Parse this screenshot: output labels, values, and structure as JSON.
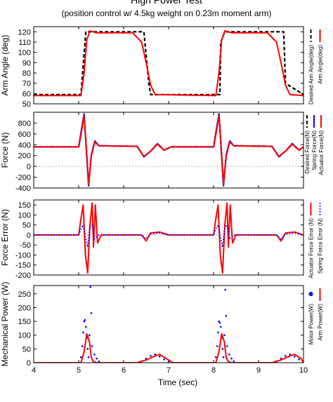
{
  "figure": {
    "title": "High Power Test",
    "subtitle": "(position control w/ 4.5kg weight on 0.23m moment arm)",
    "xlabel": "Time (sec)"
  },
  "chart_data": [
    {
      "type": "line",
      "ylabel": "Arm Angle (deg)",
      "xlim": [
        4,
        10
      ],
      "ylim": [
        50,
        125
      ],
      "yticks": [
        50,
        60,
        70,
        80,
        90,
        100,
        110,
        120
      ],
      "legend_position": "right",
      "series": [
        {
          "name": "Desired Arm Angle(deg)",
          "color": "#000000",
          "style": "dashed",
          "x": [
            4,
            5.05,
            5.14,
            5.16,
            5.25,
            6.45,
            6.56,
            6.6,
            8.05,
            8.14,
            8.16,
            8.25,
            9.45,
            9.56,
            9.6,
            10
          ],
          "y": [
            59,
            59,
            110,
            120,
            120,
            120,
            70,
            59,
            59,
            59,
            110,
            120,
            120,
            120,
            70,
            59
          ]
        },
        {
          "name": "Arm Angle(deg)",
          "color": "#ff0000",
          "style": "solid",
          "x": [
            4,
            5.05,
            5.12,
            5.18,
            5.25,
            5.4,
            6.2,
            6.4,
            6.5,
            6.6,
            6.7,
            8.05,
            8.12,
            8.18,
            8.25,
            8.4,
            9.2,
            9.4,
            9.5,
            9.6,
            9.7,
            10
          ],
          "y": [
            58,
            58,
            80,
            112,
            121,
            119,
            119,
            110,
            90,
            68,
            59,
            58,
            80,
            112,
            121,
            119,
            119,
            110,
            90,
            68,
            59,
            58
          ]
        }
      ]
    },
    {
      "type": "line",
      "ylabel": "Force (N)",
      "xlim": [
        4,
        10
      ],
      "ylim": [
        -400,
        1000
      ],
      "yticks": [
        -400,
        -200,
        0,
        200,
        400,
        600,
        800
      ],
      "legend_position": "right",
      "series": [
        {
          "name": "Desired Force(N)",
          "color": "#000000",
          "style": "dashed",
          "x": [
            4,
            5.0,
            5.05,
            5.12,
            5.18,
            5.22,
            5.28,
            5.36,
            5.45,
            6.3,
            6.45,
            6.6,
            6.75,
            6.9,
            7.05,
            8.0,
            8.05,
            8.12,
            8.18,
            8.22,
            8.28,
            8.36,
            8.45,
            9.3,
            9.45,
            9.6,
            9.75,
            9.9,
            10
          ],
          "y": [
            360,
            360,
            600,
            960,
            200,
            -350,
            200,
            460,
            380,
            370,
            180,
            280,
            420,
            300,
            360,
            360,
            600,
            960,
            200,
            -350,
            200,
            460,
            380,
            370,
            180,
            280,
            420,
            300,
            360
          ]
        },
        {
          "name": "Spring Force(N)",
          "color": "#0000ff",
          "style": "solid",
          "x": [
            4,
            5.0,
            5.05,
            5.12,
            5.18,
            5.22,
            5.28,
            5.36,
            5.45,
            6.3,
            6.45,
            6.6,
            6.75,
            6.9,
            7.05,
            8.0,
            8.05,
            8.12,
            8.18,
            8.22,
            8.28,
            8.36,
            8.45,
            9.3,
            9.45,
            9.6,
            9.75,
            9.9,
            10
          ],
          "y": [
            360,
            360,
            620,
            970,
            180,
            -360,
            210,
            470,
            380,
            370,
            175,
            280,
            420,
            300,
            360,
            360,
            620,
            970,
            180,
            -360,
            210,
            470,
            380,
            370,
            175,
            280,
            420,
            300,
            360
          ]
        },
        {
          "name": "Actuator Force(N)",
          "color": "#ff0000",
          "style": "solid",
          "x": [
            4,
            5.0,
            5.05,
            5.12,
            5.18,
            5.22,
            5.28,
            5.36,
            5.45,
            6.3,
            6.45,
            6.6,
            6.75,
            6.9,
            7.05,
            8.0,
            8.05,
            8.12,
            8.18,
            8.22,
            8.28,
            8.36,
            8.45,
            9.3,
            9.45,
            9.6,
            9.75,
            9.9,
            10
          ],
          "y": [
            360,
            360,
            580,
            940,
            220,
            -330,
            190,
            450,
            380,
            370,
            185,
            280,
            410,
            300,
            360,
            360,
            580,
            940,
            220,
            -330,
            190,
            450,
            380,
            370,
            185,
            280,
            410,
            300,
            360
          ]
        }
      ]
    },
    {
      "type": "line",
      "ylabel": "Force Error (N)",
      "xlim": [
        4,
        10
      ],
      "ylim": [
        -200,
        175
      ],
      "yticks": [
        -200,
        -150,
        -100,
        -50,
        0,
        50,
        100,
        150
      ],
      "legend_position": "right",
      "series": [
        {
          "name": "Actuator Force Error (N)",
          "color": "#ff0000",
          "style": "solid",
          "x": [
            4,
            5.0,
            5.05,
            5.1,
            5.15,
            5.2,
            5.25,
            5.3,
            5.33,
            5.37,
            5.42,
            5.5,
            6.4,
            6.5,
            6.6,
            6.8,
            7.0,
            8.0,
            8.05,
            8.1,
            8.15,
            8.2,
            8.25,
            8.3,
            8.33,
            8.37,
            8.42,
            8.5,
            9.4,
            9.5,
            9.6,
            9.8,
            10
          ],
          "y": [
            0,
            0,
            80,
            150,
            -100,
            -190,
            50,
            160,
            -60,
            150,
            -40,
            0,
            0,
            -30,
            10,
            15,
            0,
            0,
            80,
            150,
            -100,
            -190,
            50,
            160,
            -60,
            150,
            -40,
            0,
            0,
            -30,
            10,
            15,
            0
          ]
        },
        {
          "name": "Spring Force Error (N)",
          "color": "#0000ff",
          "style": "dotted",
          "x": [
            4,
            5.0,
            5.05,
            5.1,
            5.15,
            5.2,
            5.25,
            5.3,
            5.35,
            5.45,
            6.4,
            6.5,
            6.6,
            6.8,
            7.0,
            8.0,
            8.05,
            8.1,
            8.15,
            8.2,
            8.25,
            8.3,
            8.35,
            8.45,
            9.4,
            9.5,
            9.6,
            9.8,
            10
          ],
          "y": [
            0,
            0,
            30,
            50,
            -10,
            -60,
            40,
            50,
            -20,
            0,
            0,
            -20,
            5,
            10,
            0,
            0,
            30,
            50,
            -10,
            -60,
            40,
            50,
            -20,
            0,
            0,
            -20,
            5,
            10,
            0
          ]
        }
      ]
    },
    {
      "type": "scatter",
      "ylabel": "Mechanical Power (W)",
      "xlim": [
        4,
        10
      ],
      "ylim": [
        0,
        280
      ],
      "yticks": [
        0,
        50,
        100,
        150,
        200,
        250
      ],
      "xticks": [
        4,
        5,
        6,
        7,
        8,
        9,
        10
      ],
      "legend_position": "right",
      "series": [
        {
          "name": "Motor Power(W)",
          "color": "#0000ff",
          "style": "dots",
          "x": [
            5.05,
            5.08,
            5.1,
            5.12,
            5.14,
            5.16,
            5.18,
            5.2,
            5.22,
            5.24,
            5.26,
            5.28,
            5.3,
            5.35,
            5.4,
            5.45,
            6.4,
            6.5,
            6.6,
            6.7,
            6.8,
            6.9,
            7.0,
            8.05,
            8.08,
            8.1,
            8.12,
            8.14,
            8.16,
            8.18,
            8.2,
            8.22,
            8.24,
            8.26,
            8.28,
            8.3,
            8.35,
            8.4,
            8.45,
            9.4,
            9.5,
            9.6,
            9.7,
            9.8,
            9.9,
            10.0
          ],
          "y": [
            20,
            60,
            110,
            150,
            155,
            130,
            90,
            50,
            20,
            100,
            275,
            180,
            60,
            30,
            15,
            5,
            5,
            15,
            25,
            30,
            22,
            12,
            3,
            20,
            60,
            110,
            150,
            145,
            130,
            90,
            50,
            20,
            100,
            265,
            170,
            60,
            30,
            15,
            5,
            5,
            15,
            25,
            30,
            22,
            12,
            3
          ]
        },
        {
          "name": "Arm Power(W)",
          "color": "#ff0000",
          "style": "solid",
          "x": [
            4,
            5.05,
            5.12,
            5.18,
            5.24,
            5.28,
            5.32,
            5.4,
            6.3,
            6.5,
            6.7,
            6.8,
            6.95,
            7.1,
            8.05,
            8.12,
            8.18,
            8.24,
            8.28,
            8.32,
            8.4,
            9.3,
            9.5,
            9.7,
            9.8,
            9.95,
            10
          ],
          "y": [
            0,
            0,
            40,
            105,
            75,
            20,
            5,
            0,
            0,
            10,
            25,
            30,
            15,
            0,
            0,
            40,
            105,
            75,
            20,
            5,
            0,
            0,
            10,
            25,
            30,
            15,
            0
          ]
        }
      ]
    }
  ]
}
